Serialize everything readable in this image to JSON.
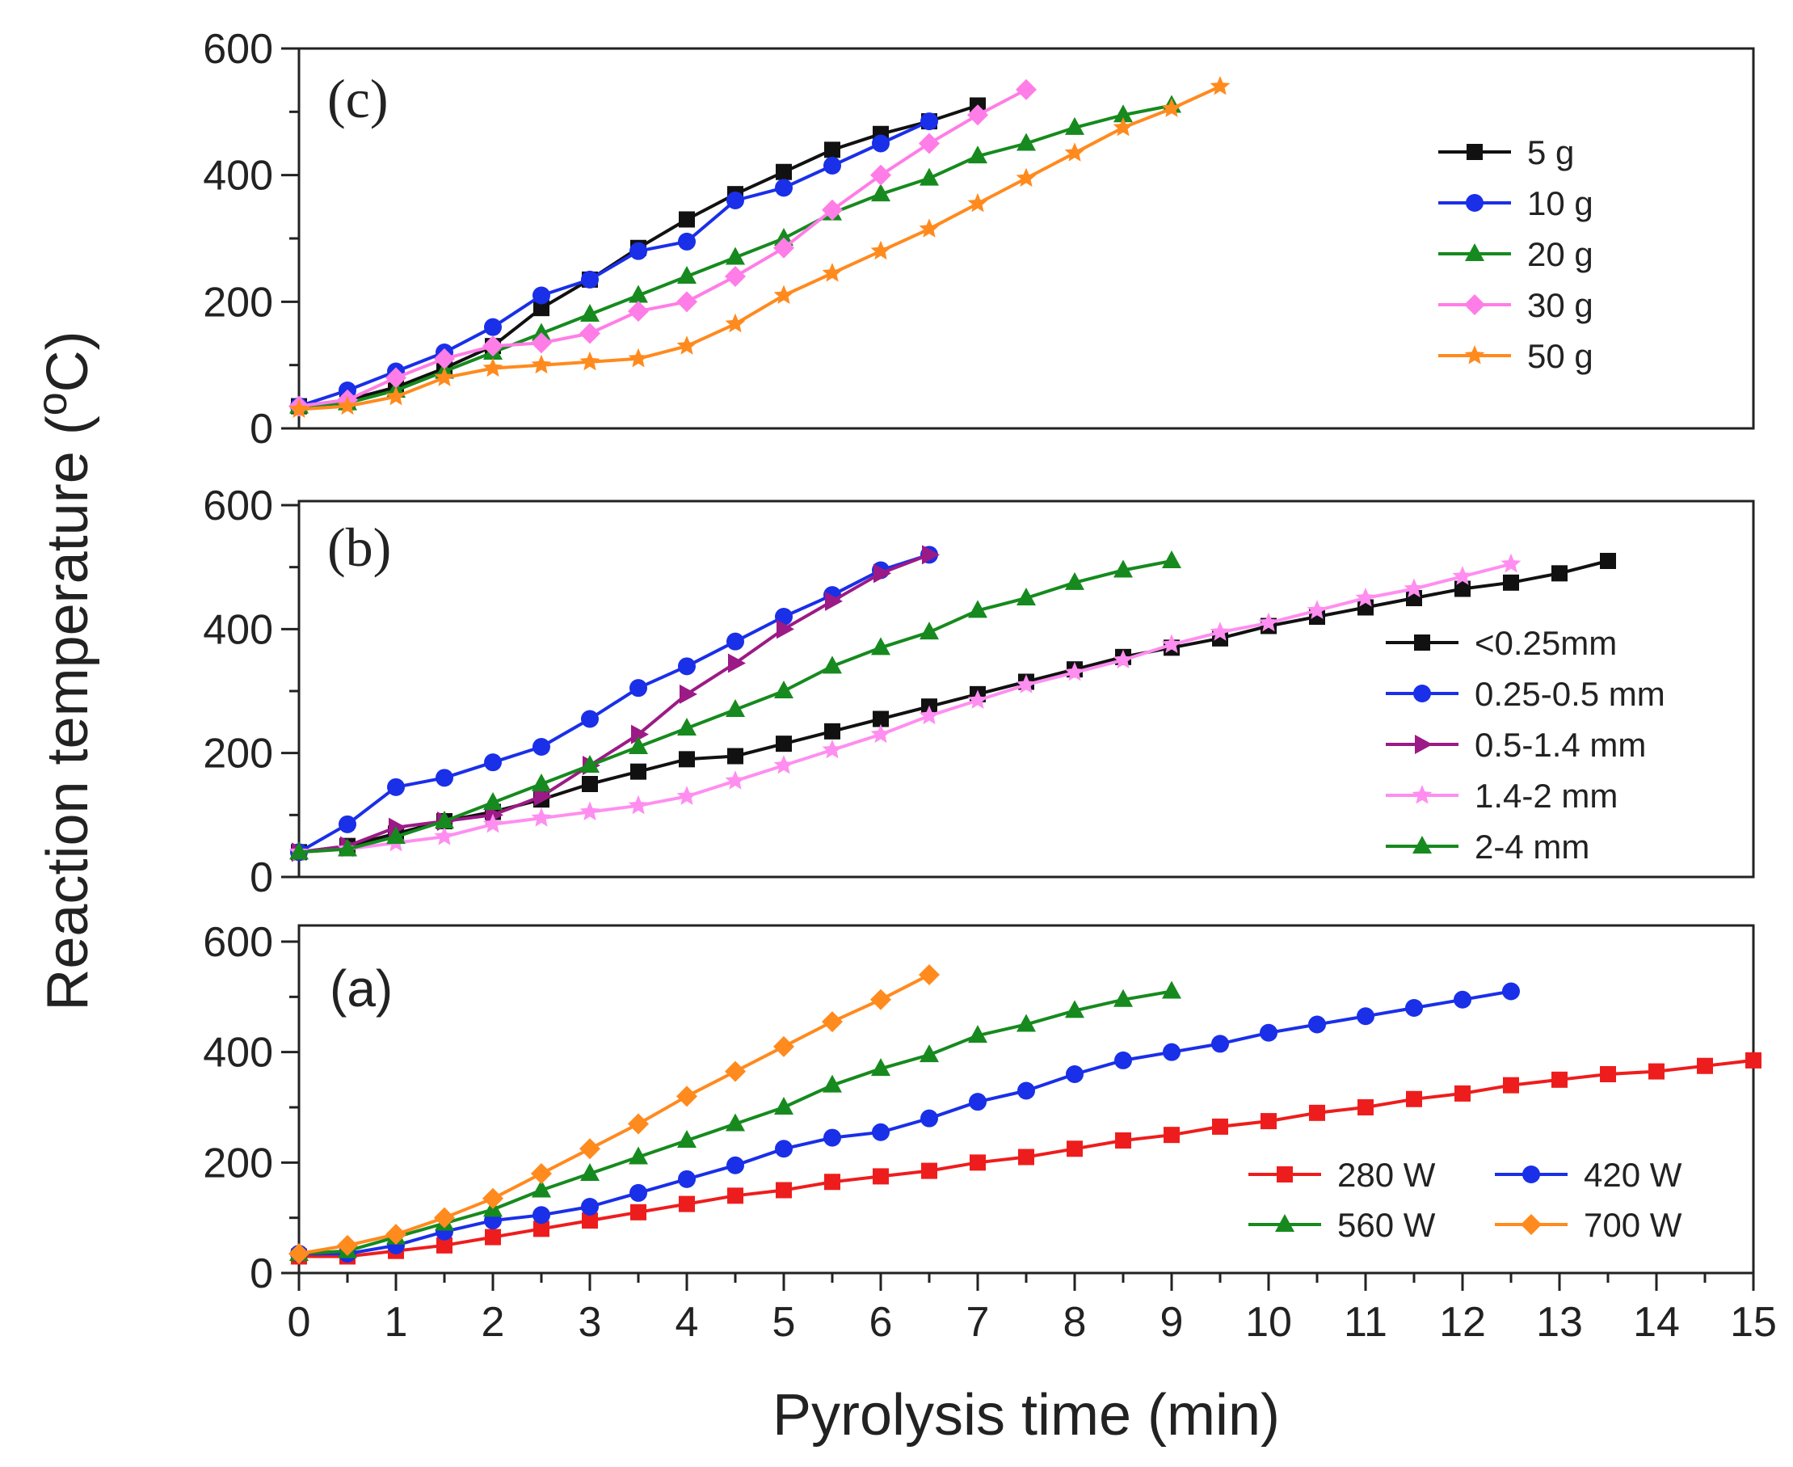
{
  "figure": {
    "ylabel": "Reaction temperature (",
    "ylabel_sup": "o",
    "ylabel_unit": "C)",
    "xlabel": "Pyrolysis time (min)",
    "x_ticks": [
      "0",
      "1",
      "2",
      "3",
      "4",
      "5",
      "6",
      "7",
      "8",
      "9",
      "10",
      "11",
      "12",
      "13",
      "14",
      "15"
    ]
  },
  "chart_data": [
    {
      "type": "line",
      "panel_label": "(c)",
      "title": "",
      "xlabel": "Pyrolysis time (min)",
      "ylabel": "Reaction temperature (oC)",
      "xlim": [
        0,
        15
      ],
      "ylim": [
        0,
        600
      ],
      "y_ticks": [
        "0",
        "200",
        "400",
        "600"
      ],
      "legend_position": "right",
      "series": [
        {
          "name": "5 g",
          "color": "#111111",
          "marker": "square",
          "x": [
            0,
            0.5,
            1,
            1.5,
            2,
            2.5,
            3,
            3.5,
            4,
            4.5,
            5,
            5.5,
            6,
            6.5,
            7
          ],
          "y": [
            35,
            45,
            65,
            95,
            130,
            190,
            235,
            285,
            330,
            370,
            405,
            440,
            465,
            485,
            510
          ]
        },
        {
          "name": "10 g",
          "color": "#1a2fe8",
          "marker": "circle",
          "x": [
            0,
            0.5,
            1,
            1.5,
            2,
            2.5,
            3,
            3.5,
            4,
            4.5,
            5,
            5.5,
            6,
            6.5
          ],
          "y": [
            35,
            60,
            90,
            120,
            160,
            210,
            235,
            280,
            295,
            360,
            380,
            415,
            450,
            485
          ]
        },
        {
          "name": "20 g",
          "color": "#168a1e",
          "marker": "triangle",
          "x": [
            0,
            0.5,
            1,
            1.5,
            2,
            2.5,
            3,
            3.5,
            4,
            4.5,
            5,
            5.5,
            6,
            6.5,
            7,
            7.5,
            8,
            8.5,
            9
          ],
          "y": [
            35,
            40,
            60,
            90,
            120,
            150,
            180,
            210,
            240,
            270,
            300,
            340,
            370,
            395,
            430,
            450,
            475,
            495,
            510
          ]
        },
        {
          "name": "30 g",
          "color": "#ff7de6",
          "marker": "diamond",
          "x": [
            0,
            0.5,
            1,
            1.5,
            2,
            2.5,
            3,
            3.5,
            4,
            4.5,
            5,
            5.5,
            6,
            6.5,
            7,
            7.5
          ],
          "y": [
            35,
            45,
            80,
            110,
            130,
            135,
            150,
            185,
            200,
            240,
            285,
            345,
            400,
            450,
            495,
            535
          ]
        },
        {
          "name": "50 g",
          "color": "#ff8a1e",
          "marker": "star",
          "x": [
            0,
            0.5,
            1,
            1.5,
            2,
            2.5,
            3,
            3.5,
            4,
            4.5,
            5,
            5.5,
            6,
            6.5,
            7,
            7.5,
            8,
            8.5,
            9,
            9.5
          ],
          "y": [
            30,
            35,
            50,
            80,
            95,
            100,
            105,
            110,
            130,
            165,
            210,
            245,
            280,
            315,
            355,
            395,
            435,
            475,
            505,
            540
          ]
        }
      ]
    },
    {
      "type": "line",
      "panel_label": "(b)",
      "title": "",
      "xlabel": "Pyrolysis time (min)",
      "ylabel": "Reaction temperature (oC)",
      "xlim": [
        0,
        15
      ],
      "ylim": [
        0,
        600
      ],
      "y_ticks": [
        "0",
        "200",
        "400",
        "600"
      ],
      "legend_position": "right",
      "series": [
        {
          "name": "<0.25mm",
          "color": "#111111",
          "marker": "square",
          "x": [
            0,
            0.5,
            1,
            1.5,
            2,
            2.5,
            3,
            3.5,
            4,
            4.5,
            5,
            5.5,
            6,
            6.5,
            7,
            7.5,
            8,
            8.5,
            9,
            9.5,
            10,
            10.5,
            11,
            11.5,
            12,
            12.5,
            13,
            13.5
          ],
          "y": [
            40,
            50,
            70,
            90,
            105,
            125,
            150,
            170,
            190,
            195,
            215,
            235,
            255,
            275,
            295,
            315,
            335,
            355,
            370,
            385,
            405,
            420,
            435,
            450,
            465,
            475,
            490,
            510
          ]
        },
        {
          "name": "0.25-0.5 mm",
          "color": "#1a2fe8",
          "marker": "circle",
          "x": [
            0,
            0.5,
            1,
            1.5,
            2,
            2.5,
            3,
            3.5,
            4,
            4.5,
            5,
            5.5,
            6,
            6.5
          ],
          "y": [
            40,
            85,
            145,
            160,
            185,
            210,
            255,
            305,
            340,
            380,
            420,
            455,
            495,
            520
          ]
        },
        {
          "name": "0.5-1.4 mm",
          "color": "#9c1a86",
          "marker": "triangle-right",
          "x": [
            0,
            0.5,
            1,
            1.5,
            2,
            2.5,
            3,
            3.5,
            4,
            4.5,
            5,
            5.5,
            6,
            6.5
          ],
          "y": [
            40,
            50,
            80,
            90,
            100,
            130,
            180,
            230,
            295,
            345,
            400,
            445,
            490,
            520
          ]
        },
        {
          "name": "1.4-2 mm",
          "color": "#ff8ef0",
          "marker": "star",
          "x": [
            0,
            0.5,
            1,
            1.5,
            2,
            2.5,
            3,
            3.5,
            4,
            4.5,
            5,
            5.5,
            6,
            6.5,
            7,
            7.5,
            8,
            8.5,
            9,
            9.5,
            10,
            10.5,
            11,
            11.5,
            12,
            12.5
          ],
          "y": [
            40,
            45,
            55,
            65,
            85,
            95,
            105,
            115,
            130,
            155,
            180,
            205,
            230,
            260,
            285,
            310,
            330,
            350,
            375,
            395,
            410,
            430,
            450,
            465,
            485,
            505
          ]
        },
        {
          "name": "2-4 mm",
          "color": "#168a1e",
          "marker": "triangle",
          "x": [
            0,
            0.5,
            1,
            1.5,
            2,
            2.5,
            3,
            3.5,
            4,
            4.5,
            5,
            5.5,
            6,
            6.5,
            7,
            7.5,
            8,
            8.5,
            9
          ],
          "y": [
            40,
            45,
            65,
            90,
            120,
            150,
            180,
            210,
            240,
            270,
            300,
            340,
            370,
            395,
            430,
            450,
            475,
            495,
            510
          ]
        }
      ]
    },
    {
      "type": "line",
      "panel_label": "(a)",
      "title": "",
      "xlabel": "Pyrolysis time (min)",
      "ylabel": "Reaction temperature (oC)",
      "xlim": [
        0,
        15
      ],
      "ylim": [
        0,
        600
      ],
      "y_ticks": [
        "0",
        "200",
        "400",
        "600"
      ],
      "legend_position": "bottom-right",
      "series": [
        {
          "name": "280 W",
          "color": "#ee1d1d",
          "marker": "square",
          "x": [
            0,
            0.5,
            1,
            1.5,
            2,
            2.5,
            3,
            3.5,
            4,
            4.5,
            5,
            5.5,
            6,
            6.5,
            7,
            7.5,
            8,
            8.5,
            9,
            9.5,
            10,
            10.5,
            11,
            11.5,
            12,
            12.5,
            13,
            13.5,
            14,
            14.5,
            15
          ],
          "y": [
            30,
            30,
            40,
            50,
            65,
            80,
            95,
            110,
            125,
            140,
            150,
            165,
            175,
            185,
            200,
            210,
            225,
            240,
            250,
            265,
            275,
            290,
            300,
            315,
            325,
            340,
            350,
            360,
            365,
            375,
            385
          ]
        },
        {
          "name": "420 W",
          "color": "#1a2fe8",
          "marker": "circle",
          "x": [
            0,
            0.5,
            1,
            1.5,
            2,
            2.5,
            3,
            3.5,
            4,
            4.5,
            5,
            5.5,
            6,
            6.5,
            7,
            7.5,
            8,
            8.5,
            9,
            9.5,
            10,
            10.5,
            11,
            11.5,
            12,
            12.5
          ],
          "y": [
            35,
            35,
            50,
            75,
            95,
            105,
            120,
            145,
            170,
            195,
            225,
            245,
            255,
            280,
            310,
            330,
            360,
            385,
            400,
            415,
            435,
            450,
            465,
            480,
            495,
            510
          ]
        },
        {
          "name": "560 W",
          "color": "#168a1e",
          "marker": "triangle",
          "x": [
            0,
            0.5,
            1,
            1.5,
            2,
            2.5,
            3,
            3.5,
            4,
            4.5,
            5,
            5.5,
            6,
            6.5,
            7,
            7.5,
            8,
            8.5,
            9
          ],
          "y": [
            35,
            40,
            65,
            90,
            115,
            150,
            180,
            210,
            240,
            270,
            300,
            340,
            370,
            395,
            430,
            450,
            475,
            495,
            510
          ]
        },
        {
          "name": "700 W",
          "color": "#ff8a1e",
          "marker": "diamond",
          "x": [
            0,
            0.5,
            1,
            1.5,
            2,
            2.5,
            3,
            3.5,
            4,
            4.5,
            5,
            5.5,
            6,
            6.5
          ],
          "y": [
            35,
            50,
            70,
            100,
            135,
            180,
            225,
            270,
            320,
            365,
            410,
            455,
            495,
            540
          ]
        }
      ]
    }
  ]
}
